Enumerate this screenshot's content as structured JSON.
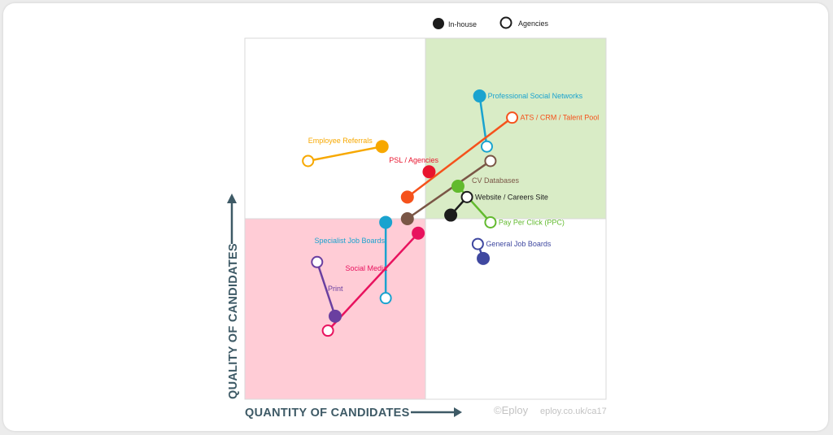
{
  "chart_data": {
    "type": "scatter",
    "xlabel": "QUANTITY OF CANDIDATES",
    "ylabel": "QUALITY OF CANDIDATES",
    "xlim": [
      0,
      10
    ],
    "ylim": [
      0,
      10
    ],
    "grid": false,
    "quadrants": {
      "top_right_color": "#d9ecc6",
      "bottom_left_color": "#ffccd6"
    },
    "legend": {
      "placement": "top-center",
      "entries": [
        {
          "label": "In-house",
          "marker": "filled"
        },
        {
          "label": "Agencies",
          "marker": "hollow"
        }
      ]
    },
    "series": [
      {
        "name": "Professional Social Networks",
        "color": "#1aa3cf",
        "in_house": [
          6.5,
          8.4
        ],
        "agencies": [
          6.7,
          7.0
        ],
        "label_at": "in_house",
        "label_pos": "right"
      },
      {
        "name": "ATS / CRM / Talent Pool",
        "color": "#f5521c",
        "in_house": [
          4.5,
          5.6
        ],
        "agencies": [
          7.4,
          7.8
        ],
        "label_at": "agencies",
        "label_pos": "right"
      },
      {
        "name": "Employee Referrals",
        "color": "#f7a800",
        "in_house": [
          3.8,
          7.0
        ],
        "agencies": [
          1.75,
          6.6
        ],
        "label_at": "in_house",
        "label_pos": "left"
      },
      {
        "name": "PSL / Agencies",
        "color": "#e8152e",
        "in_house": [
          5.1,
          6.3
        ],
        "agencies": null,
        "label_at": "in_house",
        "label_pos": "upper-left"
      },
      {
        "name": "CV Databases",
        "color": "#7a5646",
        "in_house": [
          4.5,
          5.0
        ],
        "agencies": [
          6.8,
          6.6
        ],
        "label_at": "agencies",
        "label_pos": "lower-left"
      },
      {
        "name": "Website / Careers Site",
        "color": "#1c1c1c",
        "in_house": [
          5.7,
          5.1
        ],
        "agencies": [
          6.15,
          5.6
        ],
        "label_at": "agencies",
        "label_pos": "right"
      },
      {
        "name": "Pay Per Click (PPC)",
        "color": "#62ba2e",
        "in_house": [
          5.9,
          5.9
        ],
        "agencies": [
          6.8,
          4.9
        ],
        "label_at": "agencies",
        "label_pos": "right"
      },
      {
        "name": "General Job Boards",
        "color": "#3f48a0",
        "in_house": [
          6.6,
          3.9
        ],
        "agencies": [
          6.45,
          4.3
        ],
        "label_at": "agencies",
        "label_pos": "right"
      },
      {
        "name": "Specialist Job Boards",
        "color": "#1aa3cf",
        "in_house": [
          3.9,
          4.9
        ],
        "agencies": [
          3.9,
          2.8
        ],
        "label_at": "in_house",
        "label_pos": "lower-left"
      },
      {
        "name": "Social Media",
        "color": "#e8125e",
        "in_house": [
          4.8,
          4.6
        ],
        "agencies": [
          2.3,
          1.9
        ],
        "label_at": "in_house",
        "label_pos": "lower-left-far"
      },
      {
        "name": "Print",
        "color": "#6a3fa0",
        "in_house": [
          2.5,
          2.3
        ],
        "agencies": [
          2.0,
          3.8
        ],
        "label_at": "in_house",
        "label_pos": "upper-right"
      }
    ]
  },
  "credit": {
    "copyright": "©Eploy",
    "url": "eploy.co.uk/ca17"
  }
}
